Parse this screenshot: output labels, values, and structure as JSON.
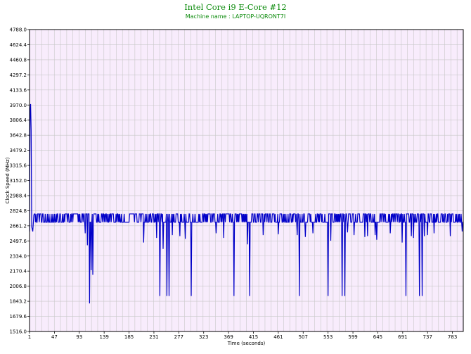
{
  "chart_data": {
    "type": "line",
    "title": "Intel Core i9 E-Core #12",
    "subtitle": "Machine name : LAPTOP-UQRONT7I",
    "xlabel": "Time (seconds)",
    "ylabel": "Clock Speed (MHz)",
    "xlim": [
      1,
      803
    ],
    "ylim": [
      1516.0,
      4788.0
    ],
    "x_ticks": [
      "1",
      "47",
      "93",
      "139",
      "185",
      "231",
      "277",
      "323",
      "369",
      "415",
      "461",
      "507",
      "553",
      "599",
      "645",
      "691",
      "737",
      "783"
    ],
    "y_ticks": [
      "4788.0",
      "4624.4",
      "4460.8",
      "4297.2",
      "4133.6",
      "3970.0",
      "3806.4",
      "3642.8",
      "3479.2",
      "3315.6",
      "3152.0",
      "2988.4",
      "2824.8",
      "2661.2",
      "2497.6",
      "2334.0",
      "2170.4",
      "2006.8",
      "1843.2",
      "1679.6",
      "1516.0"
    ],
    "grid": true,
    "colors": {
      "plot_bg": "#f8ecfc",
      "grid": "#c8c8c8",
      "line": "#0000c8",
      "title": "#0a8a0a"
    },
    "series": [
      {
        "baseline_values": [
          2700,
          2790
        ],
        "initial_points": [
          [
            1,
            2600
          ],
          [
            2,
            3900
          ],
          [
            3,
            3980
          ],
          [
            4,
            3700
          ],
          [
            5,
            2650
          ],
          [
            7,
            2600
          ],
          [
            9,
            2780
          ]
        ],
        "drops": [
          [
            104,
            2580
          ],
          [
            108,
            2450
          ],
          [
            112,
            1820
          ],
          [
            115,
            2180
          ],
          [
            118,
            2130
          ],
          [
            212,
            2480
          ],
          [
            236,
            2530
          ],
          [
            242,
            1900
          ],
          [
            248,
            2410
          ],
          [
            255,
            1900
          ],
          [
            259,
            1900
          ],
          [
            265,
            2560
          ],
          [
            279,
            2550
          ],
          [
            289,
            2520
          ],
          [
            300,
            1900
          ],
          [
            346,
            2580
          ],
          [
            360,
            2530
          ],
          [
            379,
            1900
          ],
          [
            404,
            2460
          ],
          [
            408,
            1900
          ],
          [
            433,
            2560
          ],
          [
            461,
            2570
          ],
          [
            496,
            2560
          ],
          [
            500,
            1900
          ],
          [
            511,
            2540
          ],
          [
            525,
            2580
          ],
          [
            553,
            1900
          ],
          [
            558,
            2500
          ],
          [
            579,
            1900
          ],
          [
            584,
            1900
          ],
          [
            589,
            2590
          ],
          [
            601,
            2560
          ],
          [
            621,
            2540
          ],
          [
            626,
            2550
          ],
          [
            640,
            2560
          ],
          [
            643,
            2510
          ],
          [
            668,
            2580
          ],
          [
            690,
            2480
          ],
          [
            697,
            1900
          ],
          [
            707,
            2550
          ],
          [
            711,
            2530
          ],
          [
            722,
            1900
          ],
          [
            727,
            1900
          ],
          [
            731,
            2550
          ],
          [
            737,
            2560
          ],
          [
            749,
            2580
          ],
          [
            779,
            2550
          ],
          [
            801,
            2600
          ]
        ]
      }
    ]
  }
}
